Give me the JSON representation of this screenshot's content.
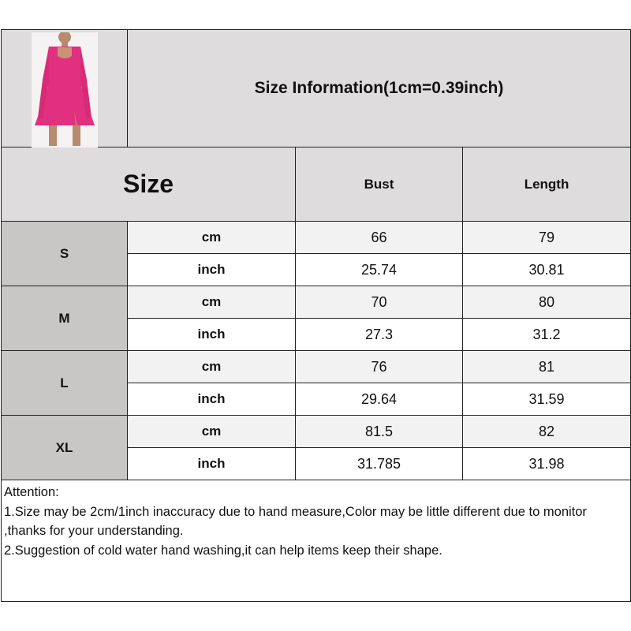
{
  "header": {
    "title": "Size Information(1cm=0.39inch)",
    "product_image": "pink-long-sleeve-square-neck-mini-dress",
    "accent_color": "#e0307f"
  },
  "columns": {
    "size": "Size",
    "bust": "Bust",
    "length": "Length"
  },
  "rows": [
    {
      "size": "S",
      "cm": {
        "unit": "cm",
        "bust": "66",
        "length": "79"
      },
      "inch": {
        "unit": "inch",
        "bust": "25.74",
        "length": "30.81"
      }
    },
    {
      "size": "M",
      "cm": {
        "unit": "cm",
        "bust": "70",
        "length": "80"
      },
      "inch": {
        "unit": "inch",
        "bust": "27.3",
        "length": "31.2"
      }
    },
    {
      "size": "L",
      "cm": {
        "unit": "cm",
        "bust": "76",
        "length": "81"
      },
      "inch": {
        "unit": "inch",
        "bust": "29.64",
        "length": "31.59"
      }
    },
    {
      "size": "XL",
      "cm": {
        "unit": "cm",
        "bust": "81.5",
        "length": "82"
      },
      "inch": {
        "unit": "inch",
        "bust": "31.785",
        "length": "31.98"
      }
    }
  ],
  "attention": {
    "heading": "Attention:",
    "line1": "1.Size may be 2cm/1inch inaccuracy due to hand measure,Color may be little different due to monitor ,thanks for your understanding.",
    "line2": "2.Suggestion of cold water hand washing,it can help items keep their shape."
  }
}
